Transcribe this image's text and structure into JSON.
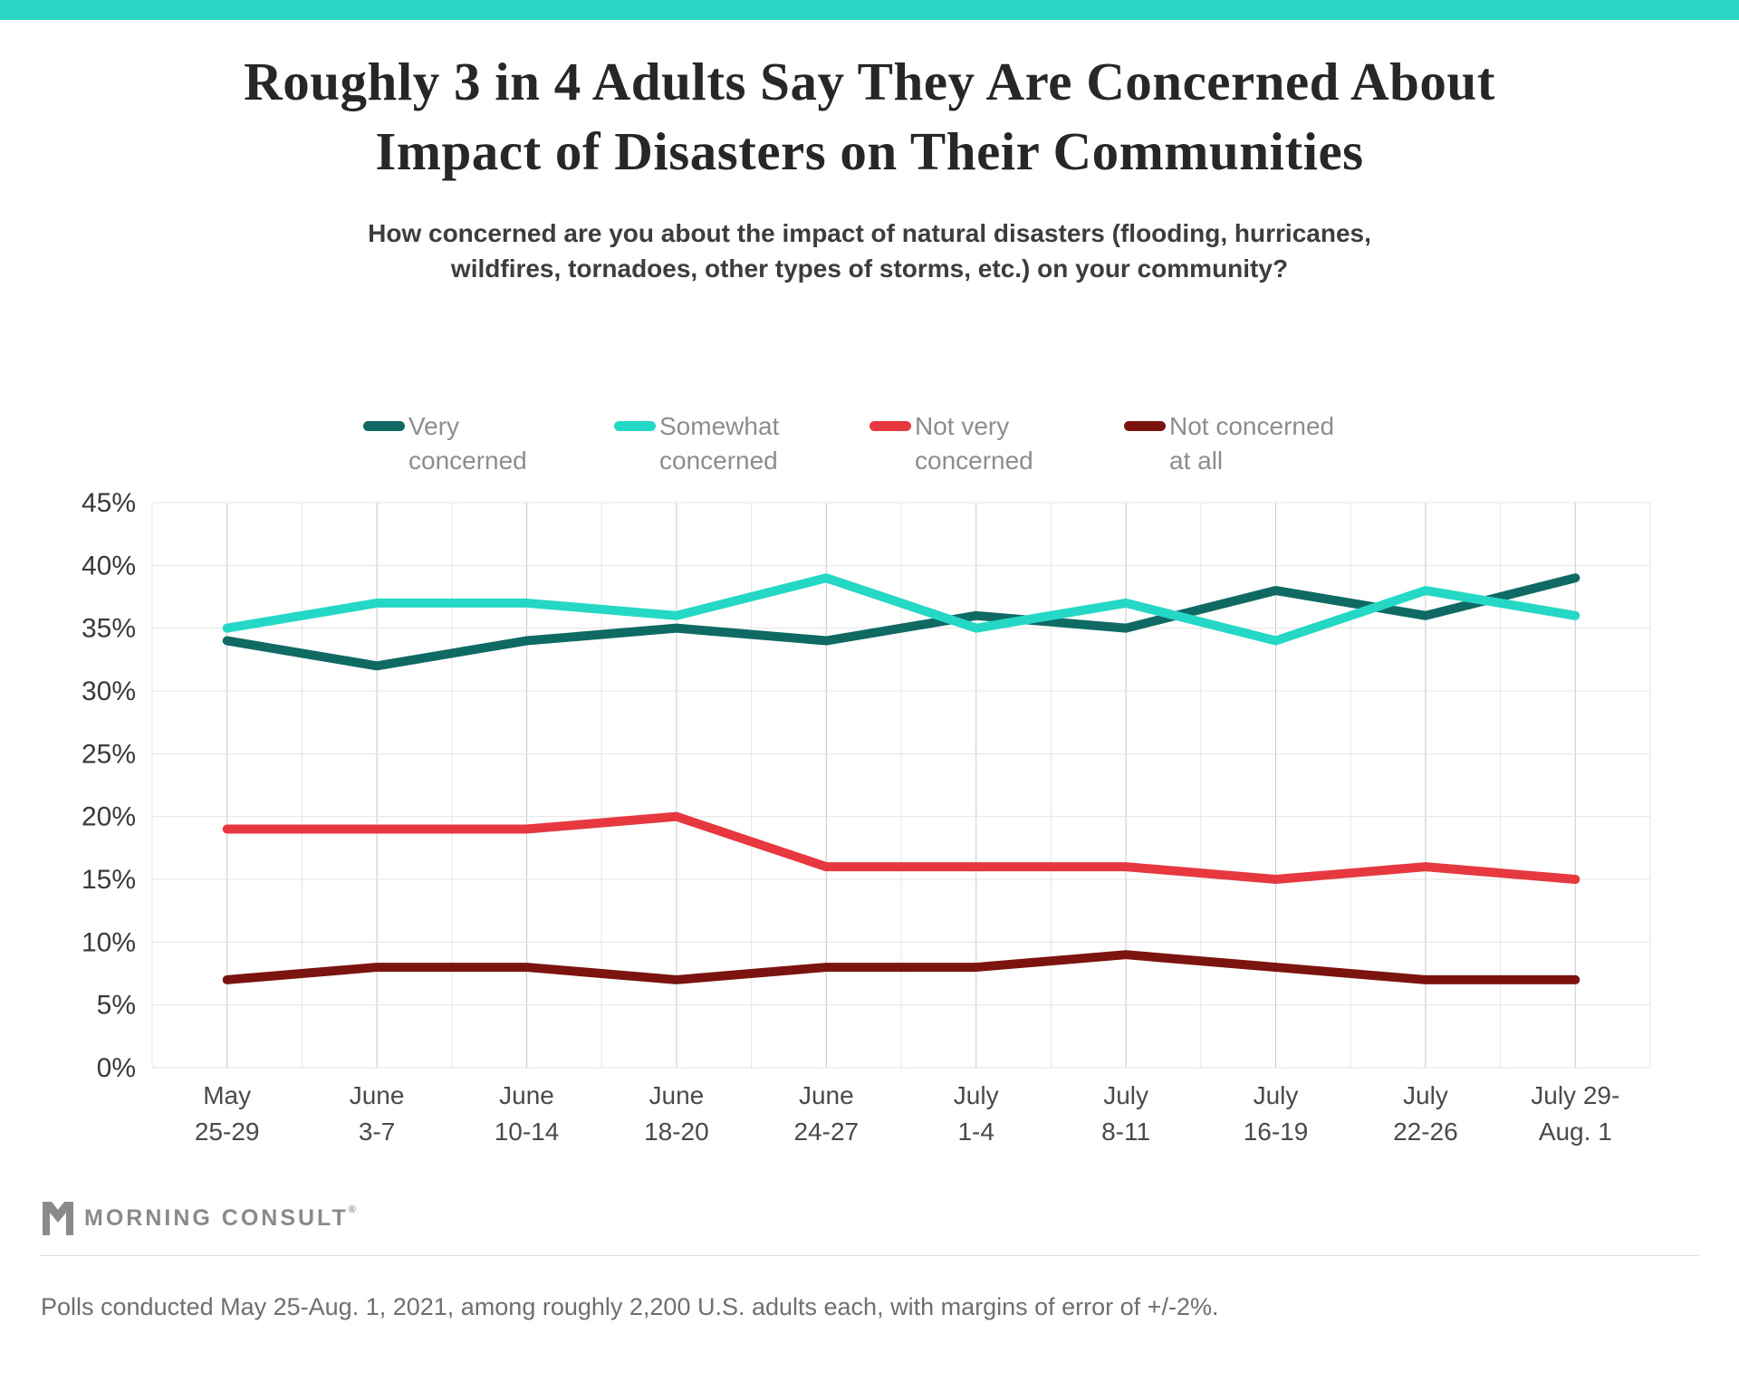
{
  "accent": {
    "bar_color": "#2bd4c4"
  },
  "title": {
    "line1": "Roughly 3 in 4 Adults Say They Are Concerned About",
    "line2": "Impact of Disasters on Their Communities"
  },
  "subtitle": {
    "line1": "How concerned are you about the impact of natural disasters (flooding, hurricanes,",
    "line2": "wildfires, tornadoes, other types of storms, etc.) on your community?"
  },
  "legend": {
    "items": [
      {
        "line1": "Very",
        "line2": "concerned",
        "color": "#0f6a63"
      },
      {
        "line1": "Somewhat",
        "line2": "concerned",
        "color": "#25d8c5"
      },
      {
        "line1": "Not very",
        "line2": "concerned",
        "color": "#e8383f"
      },
      {
        "line1": "Not concerned",
        "line2": "at all",
        "color": "#7b140e"
      }
    ]
  },
  "chart_data": {
    "type": "line",
    "categories": [
      [
        "May",
        "25-29"
      ],
      [
        "June",
        "3-7"
      ],
      [
        "June",
        "10-14"
      ],
      [
        "June",
        "18-20"
      ],
      [
        "June",
        "24-27"
      ],
      [
        "July",
        "1-4"
      ],
      [
        "July",
        "8-11"
      ],
      [
        "July",
        "16-19"
      ],
      [
        "July",
        "22-26"
      ],
      [
        "July 29-",
        "Aug. 1"
      ]
    ],
    "series": [
      {
        "name": "Very concerned",
        "color": "#0f6a63",
        "values": [
          34,
          32,
          34,
          35,
          34,
          36,
          35,
          38,
          36,
          39
        ]
      },
      {
        "name": "Somewhat concerned",
        "color": "#25d8c5",
        "values": [
          35,
          37,
          37,
          36,
          39,
          35,
          37,
          34,
          38,
          36
        ]
      },
      {
        "name": "Not very concerned",
        "color": "#e8383f",
        "values": [
          19,
          19,
          19,
          20,
          16,
          16,
          16,
          15,
          16,
          15
        ]
      },
      {
        "name": "Not concerned at all",
        "color": "#7b140e",
        "values": [
          7,
          8,
          8,
          7,
          8,
          8,
          9,
          8,
          7,
          7
        ]
      }
    ],
    "ylim": [
      0,
      45
    ],
    "ytick_step": 5,
    "ytick_suffix": "%",
    "grid": true,
    "legend_position": "top"
  },
  "footer": {
    "logo_text": "MORNING CONSULT",
    "registered_mark": "®",
    "footnote": "Polls conducted May 25-Aug. 1, 2021, among roughly 2,200 U.S. adults each, with margins of error of +/-2%."
  }
}
